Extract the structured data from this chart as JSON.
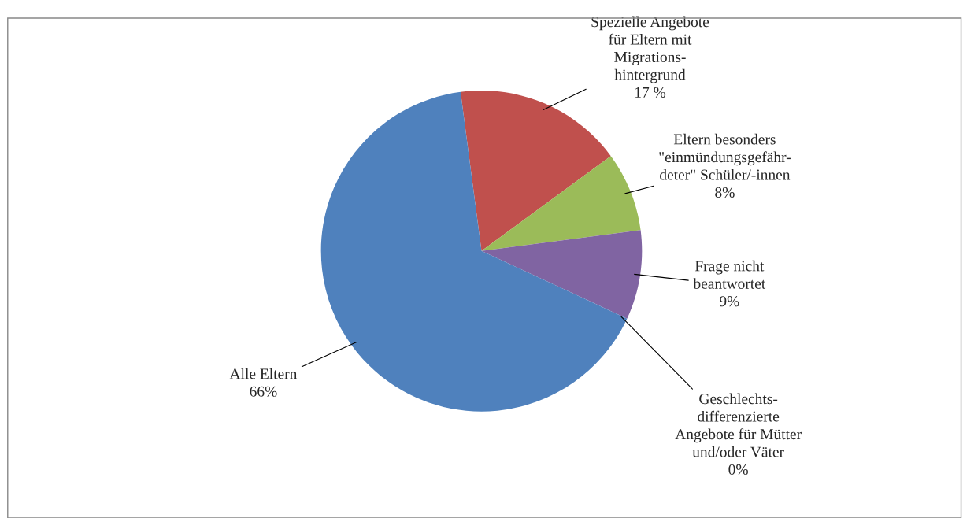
{
  "chart_data": {
    "type": "pie",
    "categories": [
      "Spezielle Angebote\nfür Eltern mit\nMigrations-\nhintergrund",
      "Eltern besonders\n\"einmündungsgefähr-\ndeter\" Schüler/-innen",
      "Frage nicht\nbeantwortet",
      "Geschlechts-\ndifferenzierte\nAngebote für Mütter\nund/oder Väter",
      "Alle Eltern"
    ],
    "values": [
      17,
      8,
      9,
      0,
      66
    ],
    "value_labels": [
      "17 %",
      "8%",
      "9%",
      "0%",
      "66%"
    ],
    "colors": [
      "#c0504d",
      "#9bbb59",
      "#8064a2",
      "#4bacc6",
      "#4f81bd"
    ]
  }
}
